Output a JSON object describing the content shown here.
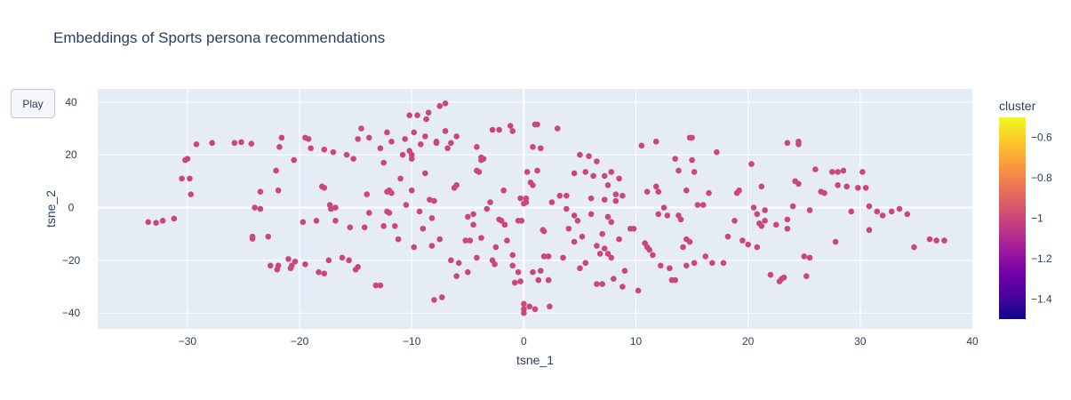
{
  "chart_data": {
    "type": "scatter",
    "title": "Embeddings of Sports persona recommendations",
    "xlabel": "tsne_1",
    "ylabel": "tsne_2",
    "xlim": [
      -38,
      40
    ],
    "ylim": [
      -46,
      45
    ],
    "xticks": [
      -30,
      -20,
      -10,
      0,
      10,
      20,
      30,
      40
    ],
    "yticks": [
      -40,
      -20,
      0,
      20,
      40
    ],
    "grid": true,
    "marker_color": "#cc4778",
    "plot_background": "#e5ecf6",
    "colorbar": {
      "title": "cluster",
      "range": [
        -1.5,
        -0.5
      ],
      "ticks": [
        -1.4,
        -1.2,
        -1,
        -0.8,
        -0.6
      ],
      "tick_labels": [
        "−1.4",
        "−1.2",
        "−1",
        "−0.8",
        "−0.6"
      ],
      "colorscale": [
        "#0d0887",
        "#46039f",
        "#7201a8",
        "#9c179e",
        "#bd3786",
        "#d8576b",
        "#ed7953",
        "#fb9f3a",
        "#fdca26",
        "#f0f921"
      ]
    },
    "series": [
      {
        "cluster": -1,
        "points": [
          [
            -33.5,
            -5.5
          ],
          [
            -32.8,
            -5.8
          ],
          [
            -32.2,
            -5
          ],
          [
            -31.2,
            -4.2
          ],
          [
            -30.5,
            11
          ],
          [
            -30.2,
            18
          ],
          [
            -30,
            18.5
          ],
          [
            -29.8,
            11
          ],
          [
            -29.7,
            5
          ],
          [
            -29.2,
            24
          ],
          [
            -27.8,
            24.5
          ],
          [
            -25.8,
            24.5
          ],
          [
            -25.2,
            24.8
          ],
          [
            -24.3,
            24.2
          ],
          [
            -24.2,
            -11
          ],
          [
            -24.2,
            -11.8
          ],
          [
            -24,
            0
          ],
          [
            -23.5,
            -0.5
          ],
          [
            -23.5,
            6
          ],
          [
            -22.8,
            -11
          ],
          [
            -22.6,
            -22
          ],
          [
            -22.1,
            14
          ],
          [
            -22,
            -23.5
          ],
          [
            -21.9,
            6.5
          ],
          [
            -21.9,
            -22
          ],
          [
            -21.6,
            26.5
          ],
          [
            -21.8,
            23
          ],
          [
            -21,
            -19.5
          ],
          [
            -20.8,
            -23
          ],
          [
            -20.7,
            -22
          ],
          [
            -20.5,
            18
          ],
          [
            -20.4,
            -20.5
          ],
          [
            -19.5,
            26.5
          ],
          [
            -19.7,
            -5.5
          ],
          [
            -19.5,
            -21.5
          ],
          [
            -19,
            22.5
          ],
          [
            -19.2,
            26
          ],
          [
            -18.5,
            -5
          ],
          [
            -18.3,
            -24.5
          ],
          [
            -18,
            8
          ],
          [
            -17.8,
            7.5
          ],
          [
            -17.8,
            -25
          ],
          [
            -17.8,
            22
          ],
          [
            -17.4,
            -20
          ],
          [
            -17.3,
            1
          ],
          [
            -17.2,
            -0.5
          ],
          [
            -17,
            21
          ],
          [
            -16.8,
            -5
          ],
          [
            -16.8,
            0
          ],
          [
            -16.2,
            -19
          ],
          [
            -15.8,
            20
          ],
          [
            -15.6,
            -20
          ],
          [
            -15.5,
            -7.5
          ],
          [
            -15.2,
            18.5
          ],
          [
            -15,
            -23.5
          ],
          [
            -14.8,
            -22.5
          ],
          [
            -14.8,
            26
          ],
          [
            -14.5,
            30
          ],
          [
            -14.2,
            -7.5
          ],
          [
            -14,
            5
          ],
          [
            -13.8,
            -2
          ],
          [
            -13.8,
            26.5
          ],
          [
            -13.2,
            -29.5
          ],
          [
            -12.8,
            22.5
          ],
          [
            -12.8,
            -29.5
          ],
          [
            -12.5,
            -7
          ],
          [
            -12.5,
            17
          ],
          [
            -12.2,
            -1.5
          ],
          [
            -12.2,
            28.5
          ],
          [
            -12.2,
            6
          ],
          [
            -12,
            6.5
          ],
          [
            -12,
            -2
          ],
          [
            -11.8,
            5.5
          ],
          [
            -11.8,
            25
          ],
          [
            -11.5,
            -7
          ],
          [
            -11.2,
            -12
          ],
          [
            -11,
            11
          ],
          [
            -10.8,
            20
          ],
          [
            -10.6,
            26
          ],
          [
            -10.5,
            1
          ],
          [
            -10.2,
            35
          ],
          [
            -10.2,
            21.5
          ],
          [
            -10,
            20
          ],
          [
            -10,
            18.5
          ],
          [
            -10,
            6.5
          ],
          [
            -9.8,
            28.5
          ],
          [
            -9.8,
            -15
          ],
          [
            -9.5,
            35
          ],
          [
            -9.3,
            -1.5
          ],
          [
            -9.2,
            24
          ],
          [
            -9,
            -8
          ],
          [
            -8.8,
            13
          ],
          [
            -8.8,
            27
          ],
          [
            -8.7,
            33.5
          ],
          [
            -8.5,
            36
          ],
          [
            -8.4,
            3
          ],
          [
            -8.2,
            -14.5
          ],
          [
            -8.2,
            -4
          ],
          [
            -8,
            2.5
          ],
          [
            -8,
            -35
          ],
          [
            -7.8,
            24.5
          ],
          [
            -7.8,
            25
          ],
          [
            -7.5,
            -12
          ],
          [
            -7.5,
            38.5
          ],
          [
            -7.3,
            -34
          ],
          [
            -7,
            39.5
          ],
          [
            -7,
            29
          ],
          [
            -6.8,
            22.5
          ],
          [
            -6.5,
            -20
          ],
          [
            -6.5,
            24.5
          ],
          [
            -6.2,
            7.5
          ],
          [
            -6,
            -26
          ],
          [
            -6,
            27
          ],
          [
            -6,
            8.5
          ],
          [
            -5.8,
            -21
          ],
          [
            -5.2,
            -12.5
          ],
          [
            -5,
            -24.5
          ],
          [
            -5,
            -3.5
          ],
          [
            -4.8,
            -12.5
          ],
          [
            -4.5,
            -6.5
          ],
          [
            -4.5,
            -2.5
          ],
          [
            -4.2,
            -19
          ],
          [
            -4.2,
            23
          ],
          [
            -4.2,
            14
          ],
          [
            -4,
            13.5
          ],
          [
            -3.8,
            -11.5
          ],
          [
            -3.8,
            19
          ],
          [
            -3.8,
            18
          ],
          [
            -3.6,
            18.5
          ],
          [
            -3.3,
            -0.5
          ],
          [
            -3,
            2
          ],
          [
            -2.8,
            -20
          ],
          [
            -2.8,
            29.5
          ],
          [
            -2.6,
            -21.5
          ],
          [
            -2.5,
            -15
          ],
          [
            -2.2,
            -4.5
          ],
          [
            -2.2,
            29.5
          ],
          [
            -2,
            -5
          ],
          [
            -1.8,
            6.5
          ],
          [
            -1.7,
            -6.5
          ],
          [
            -1.5,
            -12.5
          ],
          [
            -1.2,
            31
          ],
          [
            -1,
            -22
          ],
          [
            -1,
            29
          ],
          [
            -1,
            -18
          ],
          [
            -0.8,
            -28.5
          ],
          [
            -0.5,
            -24.5
          ],
          [
            -0.5,
            -5
          ],
          [
            -0.3,
            3.5
          ],
          [
            -0.3,
            -28
          ],
          [
            -0.2,
            -5
          ],
          [
            0,
            1.5
          ],
          [
            0,
            -36.5
          ],
          [
            0,
            -40
          ],
          [
            0,
            -38.5
          ],
          [
            0.2,
            2
          ],
          [
            0.2,
            3.5
          ],
          [
            0.3,
            13.5
          ],
          [
            0.5,
            -37.5
          ],
          [
            0.6,
            9.5
          ],
          [
            0.8,
            8.5
          ],
          [
            0.8,
            23
          ],
          [
            0.8,
            -24.5
          ],
          [
            1,
            31.5
          ],
          [
            1.2,
            31.5
          ],
          [
            1,
            -38.5
          ],
          [
            1.2,
            14
          ],
          [
            1.3,
            -27.5
          ],
          [
            1.5,
            22.5
          ],
          [
            1.5,
            -24
          ],
          [
            1.7,
            -8.5
          ],
          [
            1.8,
            -9
          ],
          [
            1.8,
            -18.5
          ],
          [
            2.2,
            -18.5
          ],
          [
            2.2,
            -27.5
          ],
          [
            2.3,
            -37.5
          ],
          [
            2.5,
            2
          ],
          [
            3,
            30
          ],
          [
            3.2,
            4.5
          ],
          [
            3.5,
            -19
          ],
          [
            3.8,
            4.5
          ],
          [
            3.8,
            -0.5
          ],
          [
            4,
            -8
          ],
          [
            4.5,
            -13
          ],
          [
            4.5,
            -3
          ],
          [
            4.5,
            13
          ],
          [
            4.8,
            -5
          ],
          [
            5,
            20
          ],
          [
            5,
            -23
          ],
          [
            5.2,
            -11
          ],
          [
            5.5,
            -21
          ],
          [
            5.5,
            13.5
          ],
          [
            5.8,
            19.5
          ],
          [
            6,
            3.5
          ],
          [
            6,
            -2.5
          ],
          [
            6.2,
            12
          ],
          [
            6.5,
            -14.5
          ],
          [
            6.5,
            -29
          ],
          [
            6.5,
            17.5
          ],
          [
            6.8,
            -17.5
          ],
          [
            7,
            -10
          ],
          [
            7,
            -29
          ],
          [
            7.2,
            -15.5
          ],
          [
            7.2,
            3
          ],
          [
            7.2,
            12
          ],
          [
            7.5,
            -17.5
          ],
          [
            7.5,
            -3.5
          ],
          [
            7.5,
            8.5
          ],
          [
            7.8,
            -19
          ],
          [
            7.8,
            13.5
          ],
          [
            7.8,
            -5.5
          ],
          [
            8.2,
            2.5
          ],
          [
            8,
            -27
          ],
          [
            8.2,
            5
          ],
          [
            8.5,
            -12
          ],
          [
            8.5,
            11
          ],
          [
            8.8,
            -30
          ],
          [
            8.8,
            4.5
          ],
          [
            9,
            -24
          ],
          [
            9.5,
            -8
          ],
          [
            9.8,
            -8
          ],
          [
            10.2,
            -31.5
          ],
          [
            10.5,
            23.5
          ],
          [
            10.8,
            -13.5
          ],
          [
            11,
            -15
          ],
          [
            11,
            6
          ],
          [
            11.2,
            -16
          ],
          [
            11.5,
            -18
          ],
          [
            11.8,
            25
          ],
          [
            11.8,
            8
          ],
          [
            12,
            6
          ],
          [
            12,
            -2.5
          ],
          [
            12.2,
            -22
          ],
          [
            12.5,
            0
          ],
          [
            12.8,
            -3
          ],
          [
            13,
            -23
          ],
          [
            13.2,
            -27.5
          ],
          [
            13.5,
            -27.5
          ],
          [
            13.5,
            18.5
          ],
          [
            13.8,
            -3
          ],
          [
            13.8,
            14
          ],
          [
            14,
            -4.5
          ],
          [
            14.2,
            -15
          ],
          [
            14.5,
            -12
          ],
          [
            14.5,
            6.5
          ],
          [
            14.5,
            -22
          ],
          [
            14.8,
            -13
          ],
          [
            14.8,
            26.5
          ],
          [
            15,
            26.5
          ],
          [
            15,
            18
          ],
          [
            15.2,
            13.5
          ],
          [
            15.2,
            -21
          ],
          [
            15.5,
            1
          ],
          [
            16,
            1
          ],
          [
            16.2,
            -18.5
          ],
          [
            16.5,
            5.5
          ],
          [
            16.8,
            -21
          ],
          [
            17.2,
            21
          ],
          [
            17.8,
            -21
          ],
          [
            18.2,
            -11
          ],
          [
            18.8,
            -5
          ],
          [
            19,
            5.5
          ],
          [
            19.2,
            6.5
          ],
          [
            19.5,
            -12.5
          ],
          [
            20,
            -14
          ],
          [
            20.3,
            16.5
          ],
          [
            20.5,
            0
          ],
          [
            20.8,
            -15
          ],
          [
            20.8,
            -2.5
          ],
          [
            21,
            -6
          ],
          [
            21.2,
            -7
          ],
          [
            21.2,
            8
          ],
          [
            21.5,
            -5
          ],
          [
            21.5,
            -1
          ],
          [
            22,
            -25.5
          ],
          [
            22.5,
            -6.5
          ],
          [
            22.8,
            -28
          ],
          [
            23,
            -27
          ],
          [
            23.2,
            -26.5
          ],
          [
            23.5,
            24.5
          ],
          [
            23.5,
            -8
          ],
          [
            23.5,
            -4.5
          ],
          [
            24,
            0.5
          ],
          [
            24.2,
            10
          ],
          [
            24.5,
            9
          ],
          [
            24.5,
            25
          ],
          [
            24.5,
            24
          ],
          [
            25,
            -18.5
          ],
          [
            25.2,
            -26
          ],
          [
            25.5,
            -19
          ],
          [
            25.5,
            -1
          ],
          [
            26,
            14.5
          ],
          [
            26.5,
            6
          ],
          [
            26.8,
            5.5
          ],
          [
            27.5,
            13.5
          ],
          [
            27.8,
            -13
          ],
          [
            28,
            8.5
          ],
          [
            28,
            13.5
          ],
          [
            28.5,
            14
          ],
          [
            28.8,
            8
          ],
          [
            29.2,
            -1.5
          ],
          [
            29.8,
            7.5
          ],
          [
            30.2,
            13.5
          ],
          [
            30.5,
            7.5
          ],
          [
            30.8,
            -8.5
          ],
          [
            30.8,
            0.5
          ],
          [
            31.5,
            -1.5
          ],
          [
            32,
            -3
          ],
          [
            32.8,
            -1.5
          ],
          [
            33.5,
            -0.5
          ],
          [
            34.2,
            -2.5
          ],
          [
            34.8,
            -15
          ],
          [
            36.2,
            -12
          ],
          [
            36.8,
            -12.5
          ],
          [
            37.5,
            -12.5
          ]
        ]
      }
    ]
  },
  "controls": {
    "play_label": "Play"
  }
}
